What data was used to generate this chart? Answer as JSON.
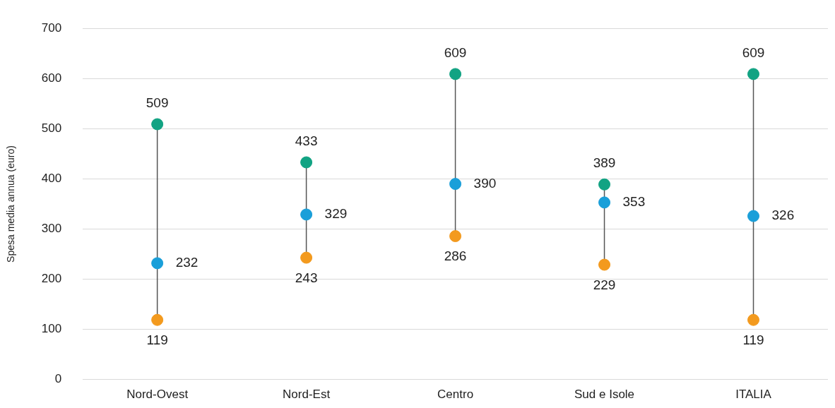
{
  "chart_data": {
    "type": "scatter",
    "ylabel": "Spesa media annua (euro)",
    "categories": [
      "Nord-Ovest",
      "Nord-Est",
      "Centro",
      "Sud e Isole",
      "ITALIA"
    ],
    "series": [
      {
        "color": "#12a383",
        "values": [
          509,
          433,
          609,
          389,
          609
        ],
        "value_labels": [
          "509",
          "433",
          "609",
          "389",
          "609"
        ]
      },
      {
        "color": "#1a9fd9",
        "values": [
          232,
          329,
          390,
          353,
          326
        ],
        "value_labels": [
          "232",
          "329",
          "390",
          "353",
          "326"
        ]
      },
      {
        "color": "#f39a1e",
        "values": [
          119,
          243,
          286,
          229,
          119
        ],
        "value_labels": [
          "119",
          "243",
          "286",
          "229",
          "119"
        ]
      }
    ],
    "ylim": [
      0,
      700
    ],
    "yticks": [
      0,
      100,
      200,
      300,
      400,
      500,
      600,
      700
    ],
    "grid": "y",
    "legend": false,
    "marker": "circle"
  }
}
